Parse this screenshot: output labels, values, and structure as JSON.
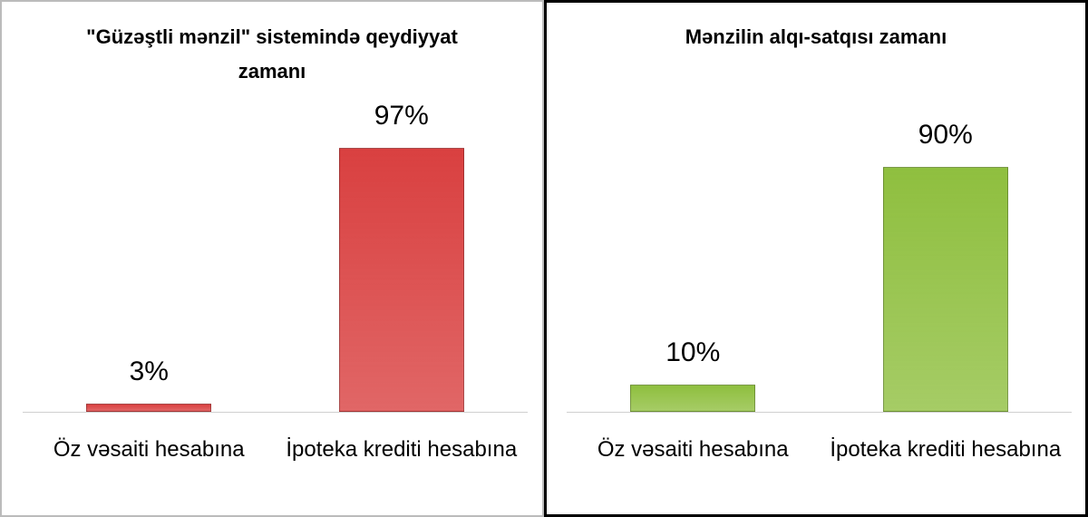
{
  "chart_data": [
    {
      "type": "bar",
      "title": "\"Güzəştli mənzil\" sistemində qeydiyyat zamanı",
      "categories": [
        "Öz vəsaiti hesabına",
        "İpoteka krediti hesabına"
      ],
      "values": [
        3,
        97
      ],
      "value_labels": [
        "3%",
        "97%"
      ],
      "color": "#d94040",
      "ylim": [
        0,
        100
      ]
    },
    {
      "type": "bar",
      "title": "Mənzilin alqı-satqısı zamanı",
      "categories": [
        "Öz vəsaiti hesabına",
        "İpoteka krediti hesabına"
      ],
      "values": [
        10,
        90
      ],
      "value_labels": [
        "10%",
        "90%"
      ],
      "color": "#8fbf3f",
      "ylim": [
        0,
        100
      ]
    }
  ]
}
